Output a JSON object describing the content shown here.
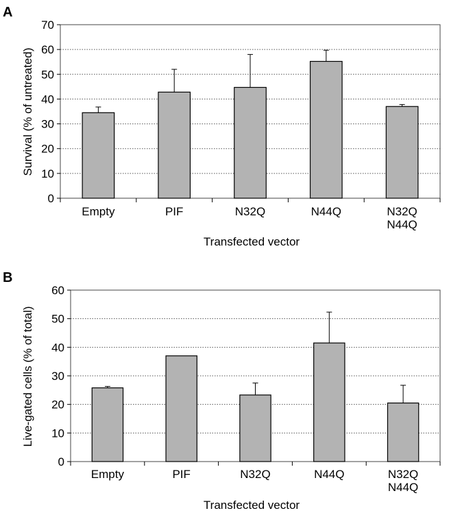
{
  "chart_data": [
    {
      "type": "bar",
      "panel_label": "A",
      "categories": [
        "Empty",
        "PIF",
        "N32Q",
        "N44Q",
        "N32Q\nN44Q"
      ],
      "values": [
        34.5,
        42.8,
        44.7,
        55.2,
        37.0
      ],
      "error_upper": [
        2.3,
        9.2,
        13.3,
        4.5,
        0.8
      ],
      "xlabel": "Transfected vector",
      "ylabel": "Survival (% of untreated)",
      "ylim": [
        0,
        70
      ],
      "yticks": [
        0,
        10,
        20,
        30,
        40,
        50,
        60,
        70
      ],
      "grid": "horizontal dotted",
      "bar_color": "#b3b3b3"
    },
    {
      "type": "bar",
      "panel_label": "B",
      "categories": [
        "Empty",
        "PIF",
        "N32Q",
        "N44Q",
        "N32Q\nN44Q"
      ],
      "values": [
        25.8,
        37.0,
        23.3,
        41.5,
        20.5
      ],
      "error_upper": [
        0.5,
        0,
        4.2,
        10.8,
        6.2
      ],
      "xlabel": "Transfected vector",
      "ylabel": "Live-gated cells (% of total)",
      "ylim": [
        0,
        60
      ],
      "yticks": [
        0,
        10,
        20,
        30,
        40,
        50,
        60
      ],
      "grid": "horizontal dotted",
      "bar_color": "#b3b3b3"
    }
  ]
}
